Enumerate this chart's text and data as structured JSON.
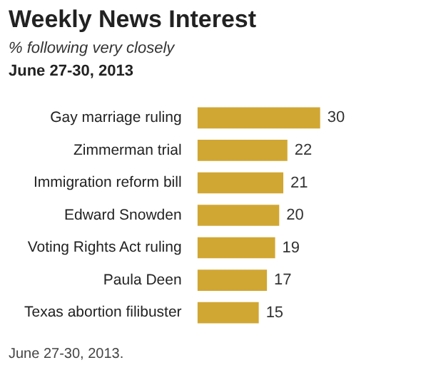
{
  "chart_data": {
    "type": "bar",
    "orientation": "horizontal",
    "title": "Weekly News Interest",
    "subtitle": "% following very closely",
    "annotations": [
      "June 27-30, 2013",
      "June 27-30, 2013."
    ],
    "categories": [
      "Gay marriage ruling",
      "Zimmerman trial",
      "Immigration reform bill",
      "Edward Snowden",
      "Voting Rights Act ruling",
      "Paula Deen",
      "Texas abortion filibuster"
    ],
    "values": [
      30,
      22,
      21,
      20,
      19,
      17,
      15
    ],
    "color": "#d1a733",
    "data_labels": true,
    "legend": false,
    "tick_labels": "y"
  }
}
